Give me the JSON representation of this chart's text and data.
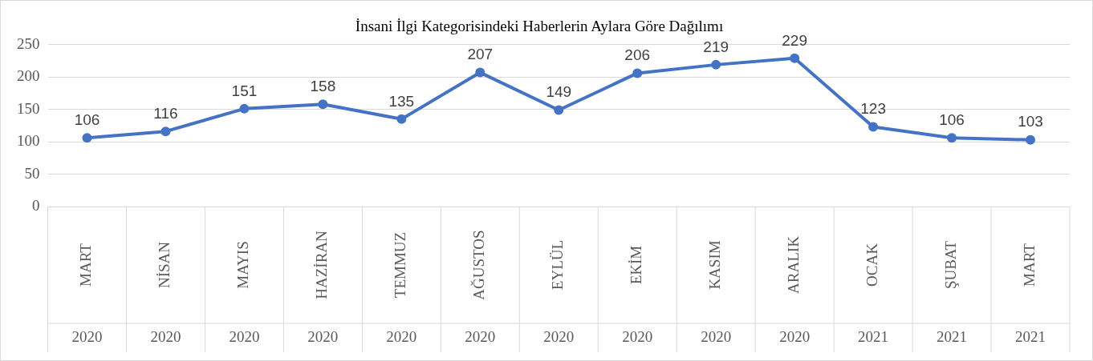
{
  "chart_data": {
    "type": "line",
    "title": "İnsani İlgi Kategorisindeki Haberlerin Aylara Göre Dağılımı",
    "categories": [
      "MART 2020",
      "NİSAN 2020",
      "MAYIS 2020",
      "HAZİRAN 2020",
      "TEMMUZ 2020",
      "AĞUSTOS 2020",
      "EYLÜL 2020",
      "EKİM 2020",
      "KASIM 2020",
      "ARALIK 2020",
      "OCAK 2021",
      "ŞUBAT 2021",
      "MART 2021"
    ],
    "series": [
      {
        "color": "#4472c4",
        "values": [
          106,
          116,
          151,
          158,
          135,
          207,
          149,
          206,
          219,
          229,
          123,
          106,
          103
        ]
      }
    ],
    "ylim": [
      0,
      250
    ],
    "yticks": [
      0,
      50,
      100,
      150,
      200,
      250
    ],
    "grid": "y",
    "legend": false,
    "marker": "circle",
    "line_style": "solid",
    "data_labels": true
  }
}
